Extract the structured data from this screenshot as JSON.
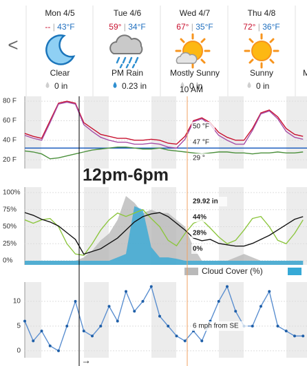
{
  "nav": {
    "prev": "<"
  },
  "days": [
    {
      "name": "Mon 4/5",
      "high": "--",
      "low": "43°F",
      "condition": "Clear",
      "precip": "0 in"
    },
    {
      "name": "Tue 4/6",
      "high": "59°",
      "low": "34°F",
      "condition": "PM Rain",
      "precip": "0.23 in"
    },
    {
      "name": "Wed 4/7",
      "high": "67°",
      "low": "35°F",
      "condition": "Mostly Sunny",
      "precip": "0 in"
    },
    {
      "name": "Thu 4/8",
      "high": "72°",
      "low": "36°F",
      "condition": "Sunny",
      "precip": "0 in"
    }
  ],
  "partial_day": "M",
  "time_marker": "10 AM",
  "annotation": "12pm-6pm",
  "footer_arrow": "→",
  "chart_data": [
    {
      "type": "line",
      "ylim": [
        11,
        85
      ],
      "yticks": [
        {
          "value": 80,
          "label": "80 F"
        },
        {
          "value": 60,
          "label": "60 F"
        },
        {
          "value": 40,
          "label": "40 F"
        },
        {
          "value": 20,
          "label": "20 F"
        }
      ],
      "grid": true,
      "reference_line": 32,
      "reference_color": "#1f5fbf",
      "series": [
        {
          "readout": "50 °F",
          "color": "#c8102e",
          "values": [
            47,
            44,
            42,
            60,
            78,
            80,
            78,
            58,
            52,
            46,
            44,
            42,
            42,
            40,
            40,
            41,
            40,
            37,
            36,
            44,
            60,
            63,
            58,
            48,
            43,
            40,
            40,
            52,
            68,
            71,
            64,
            52,
            46,
            44
          ]
        },
        {
          "readout": "47 °F",
          "color": "#a64ca6",
          "values": [
            45,
            42,
            40,
            58,
            77,
            79,
            77,
            56,
            49,
            43,
            40,
            38,
            38,
            36,
            36,
            37,
            36,
            33,
            32,
            41,
            59,
            62,
            56,
            45,
            40,
            36,
            36,
            50,
            67,
            70,
            62,
            49,
            43,
            41
          ]
        },
        {
          "readout": "29 °",
          "color": "#4a8f3a",
          "values": [
            29,
            28,
            26,
            21,
            22,
            24,
            26,
            28,
            30,
            31,
            32,
            33,
            33,
            32,
            31,
            31,
            32,
            30,
            29,
            28,
            27,
            26,
            27,
            28,
            28,
            27,
            27,
            26,
            27,
            27,
            28,
            27,
            27,
            28
          ]
        }
      ]
    },
    {
      "type": "area",
      "ylim": [
        -6,
        108
      ],
      "yticks": [
        {
          "value": 100,
          "label": "100%"
        },
        {
          "value": 75,
          "label": "75%"
        },
        {
          "value": 50,
          "label": "50%"
        },
        {
          "value": 25,
          "label": "25%"
        },
        {
          "value": 0,
          "label": "0%"
        }
      ],
      "y2lim": [
        29.66,
        30.24
      ],
      "grid": true,
      "series": [
        {
          "name": "Cloud Cover (%)",
          "kind": "area",
          "readout": "28%",
          "color": "#b9b9b9",
          "values": [
            0,
            0,
            0,
            0,
            0,
            0,
            0,
            5,
            15,
            30,
            40,
            60,
            95,
            85,
            70,
            75,
            70,
            70,
            60,
            50,
            20,
            0,
            0,
            0,
            0,
            5,
            10,
            5,
            0,
            0,
            0,
            0,
            0,
            0
          ]
        },
        {
          "kind": "area",
          "readout": "0%",
          "color": "#36a9d6",
          "values": [
            0,
            0,
            0,
            0,
            0,
            0,
            0,
            0,
            0,
            0,
            0,
            5,
            10,
            80,
            75,
            20,
            5,
            5,
            3,
            0,
            0,
            0,
            0,
            0,
            0,
            0,
            0,
            0,
            0,
            0,
            0,
            0,
            0,
            0
          ]
        },
        {
          "kind": "line",
          "readout": "44%",
          "color": "#8dc63f",
          "values": [
            60,
            55,
            60,
            62,
            50,
            25,
            10,
            8,
            25,
            45,
            60,
            70,
            65,
            70,
            75,
            62,
            50,
            30,
            22,
            40,
            55,
            60,
            48,
            35,
            25,
            30,
            45,
            62,
            65,
            50,
            30,
            25,
            40,
            60
          ]
        },
        {
          "kind": "line",
          "axis": "y2",
          "readout": "29.92 in",
          "color": "#111111",
          "values": [
            30.05,
            30.03,
            30.0,
            29.98,
            29.95,
            29.9,
            29.85,
            29.74,
            29.76,
            29.78,
            29.82,
            29.86,
            29.92,
            29.98,
            30.02,
            30.04,
            30.05,
            30.02,
            29.97,
            29.92,
            29.86,
            29.84,
            29.85,
            29.82,
            29.81,
            29.8,
            29.8,
            29.82,
            29.85,
            29.88,
            29.92,
            29.96,
            30.0,
            30.02
          ]
        }
      ]
    },
    {
      "type": "line",
      "ylim": [
        -1.4,
        13.9
      ],
      "yticks": [
        10,
        5,
        0
      ],
      "grid": true,
      "series": [
        {
          "readout": "6 mph from SE",
          "color": "#5b8fd0",
          "values": [
            6,
            2,
            4,
            1,
            0,
            5,
            10,
            4,
            3,
            5,
            9,
            6,
            12,
            8,
            10,
            13,
            7,
            5,
            3,
            2,
            4,
            2,
            6,
            10,
            13,
            8,
            5,
            5,
            9,
            12,
            5,
            4,
            3,
            3
          ]
        }
      ]
    }
  ]
}
